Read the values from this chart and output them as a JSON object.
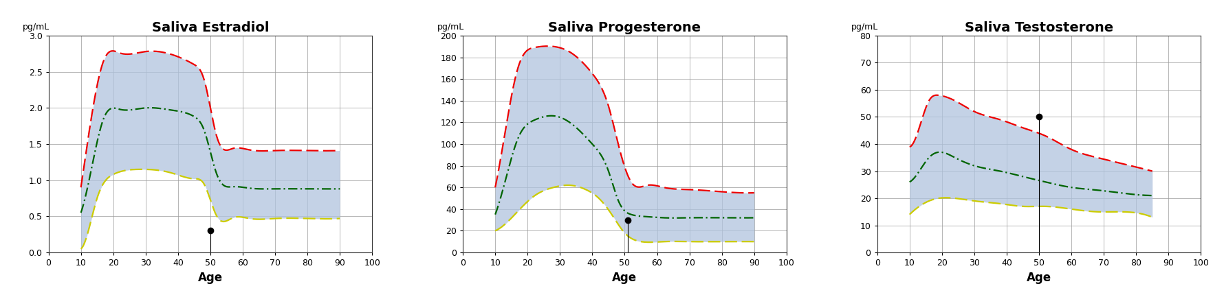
{
  "charts": [
    {
      "title": "Saliva Estradiol",
      "ylabel": "pg/mL",
      "xlabel": "Age",
      "xlim": [
        0,
        100
      ],
      "ylim": [
        0,
        3
      ],
      "yticks": [
        0,
        0.5,
        1,
        1.5,
        2,
        2.5,
        3
      ],
      "xticks": [
        0,
        10,
        20,
        30,
        40,
        50,
        60,
        70,
        80,
        90,
        100
      ],
      "dot_x": 50,
      "dot_y": 0.3,
      "red_upper": {
        "x": [
          10,
          13,
          17,
          22,
          30,
          38,
          45,
          48,
          52,
          57,
          62,
          70,
          80,
          90
        ],
        "y": [
          0.9,
          1.8,
          2.65,
          2.76,
          2.78,
          2.74,
          2.6,
          2.4,
          1.6,
          1.44,
          1.42,
          1.41,
          1.41,
          1.41
        ]
      },
      "green_mid": {
        "x": [
          10,
          13,
          17,
          22,
          30,
          38,
          45,
          48,
          52,
          57,
          62,
          70,
          80,
          90
        ],
        "y": [
          0.55,
          1.1,
          1.85,
          1.98,
          2.0,
          1.97,
          1.88,
          1.7,
          1.08,
          0.91,
          0.89,
          0.88,
          0.88,
          0.88
        ]
      },
      "yellow_lower": {
        "x": [
          10,
          12,
          15,
          20,
          28,
          38,
          45,
          48,
          52,
          57,
          62,
          70,
          80,
          90
        ],
        "y": [
          0.05,
          0.25,
          0.75,
          1.08,
          1.15,
          1.1,
          1.02,
          0.95,
          0.5,
          0.48,
          0.47,
          0.47,
          0.47,
          0.47
        ]
      }
    },
    {
      "title": "Saliva Progesterone",
      "ylabel": "pg/mL",
      "xlabel": "Age",
      "xlim": [
        0,
        100
      ],
      "ylim": [
        0,
        200
      ],
      "yticks": [
        0,
        20,
        40,
        60,
        80,
        100,
        120,
        140,
        160,
        180,
        200
      ],
      "xticks": [
        0,
        10,
        20,
        30,
        40,
        50,
        60,
        70,
        80,
        90,
        100
      ],
      "dot_x": 51,
      "dot_y": 30,
      "red_upper": {
        "x": [
          10,
          13,
          17,
          22,
          28,
          33,
          40,
          45,
          48,
          52,
          57,
          62,
          70,
          80,
          90
        ],
        "y": [
          60,
          110,
          170,
          189,
          190,
          185,
          165,
          135,
          100,
          65,
          62,
          60,
          58,
          56,
          55
        ]
      },
      "green_mid": {
        "x": [
          10,
          13,
          17,
          22,
          28,
          33,
          40,
          45,
          48,
          52,
          57,
          62,
          70,
          80,
          90
        ],
        "y": [
          35,
          65,
          105,
          122,
          126,
          120,
          100,
          75,
          48,
          35,
          33,
          32,
          32,
          32,
          32
        ]
      },
      "yellow_lower": {
        "x": [
          10,
          13,
          17,
          22,
          28,
          33,
          38,
          42,
          46,
          50,
          55,
          62,
          70,
          80,
          90
        ],
        "y": [
          20,
          26,
          38,
          52,
          60,
          62,
          58,
          50,
          35,
          18,
          10,
          10,
          10,
          10,
          10
        ]
      }
    },
    {
      "title": "Saliva Testosterone",
      "ylabel": "pg/mL",
      "xlabel": "Age",
      "xlim": [
        0,
        100
      ],
      "ylim": [
        0,
        80
      ],
      "yticks": [
        0,
        10,
        20,
        30,
        40,
        50,
        60,
        70,
        80
      ],
      "xticks": [
        0,
        10,
        20,
        30,
        40,
        50,
        60,
        70,
        80,
        90,
        100
      ],
      "dot_x": 50,
      "dot_y": 50,
      "red_upper": {
        "x": [
          10,
          13,
          16,
          19,
          24,
          30,
          38,
          45,
          52,
          60,
          68,
          75,
          85
        ],
        "y": [
          39,
          46,
          56,
          58,
          56,
          52,
          49,
          46,
          43,
          38,
          35,
          33,
          30
        ]
      },
      "green_mid": {
        "x": [
          10,
          13,
          16,
          19,
          24,
          30,
          38,
          45,
          52,
          60,
          68,
          75,
          85
        ],
        "y": [
          26,
          30,
          35,
          37,
          35,
          32,
          30,
          28,
          26,
          24,
          23,
          22,
          21
        ]
      },
      "yellow_lower": {
        "x": [
          10,
          13,
          16,
          19,
          24,
          30,
          38,
          45,
          52,
          60,
          68,
          75,
          85
        ],
        "y": [
          14,
          17,
          19,
          20,
          20,
          19,
          18,
          17,
          17,
          16,
          15,
          15,
          13
        ]
      }
    }
  ],
  "fill_color": "#b0c4de",
  "fill_alpha": 0.75,
  "red_color": "#ee0000",
  "green_color": "#006400",
  "yellow_color": "#cccc00",
  "line_width": 1.6,
  "background_color": "#ffffff",
  "grid_color": "#999999",
  "title_fontsize": 14,
  "axis_label_fontsize": 10,
  "tick_fontsize": 9,
  "ylabel_fontsize": 9
}
